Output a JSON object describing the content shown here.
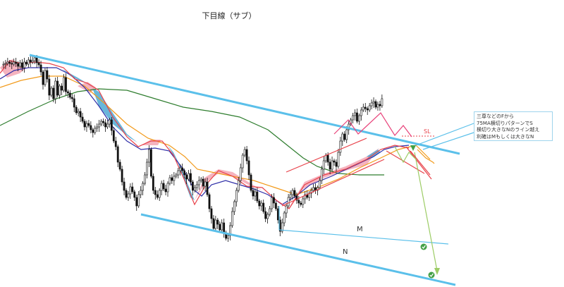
{
  "chart": {
    "title": "下目線（サブ）",
    "annotations": {
      "sl": "SL",
      "m": "M",
      "n": "N",
      "note_lines": [
        "三尊などのFから",
        "75MA横切りパターンでS",
        "横切り大きなNのライン越え",
        "利確はMもしくは大きなN"
      ]
    }
  },
  "colors": {
    "trendline": "#5bc0ea",
    "bull_candle": "#ffffff",
    "bear_candle": "#111111",
    "ma_fast": "#e8424a",
    "ma_mid": "#2f2fa8",
    "ma_75": "#f29a1a",
    "ma_200": "#2e7d2e",
    "cloud_bear": "#4fa9d3",
    "cloud_bull": "#f3a6b4",
    "zigzag": "#e8427a",
    "target_path": "#9ccc65",
    "check": "#43a047"
  },
  "chart_data": {
    "type": "candlestick",
    "title": "下目線（サブ）",
    "axes_labels_shown": false,
    "series": [
      {
        "name": "price",
        "close_path": [
          12,
          11,
          10,
          8,
          10,
          11,
          8,
          10,
          14,
          9,
          16,
          8,
          11,
          5,
          8,
          6,
          2,
          9,
          12,
          22,
          40,
          20,
          32,
          55,
          45,
          60,
          35,
          55,
          42,
          48,
          30,
          50,
          52,
          58,
          60,
          72,
          80,
          78,
          86,
          92,
          100,
          95,
          98,
          104,
          108,
          102,
          100,
          96,
          92,
          94,
          100,
          96,
          90,
          105,
          120,
          128,
          150,
          160,
          178,
          190,
          200,
          195,
          185,
          192,
          200,
          212,
          196,
          190,
          180,
          168,
          150,
          132,
          170,
          190,
          196,
          200,
          190,
          180,
          188,
          192,
          180,
          172,
          176,
          170,
          168,
          162,
          158,
          162,
          168,
          174,
          166,
          178,
          190,
          186,
          182,
          176,
          174,
          184,
          178,
          196,
          216,
          230,
          244,
          232,
          238,
          246,
          236,
          250,
          258,
          254,
          240,
          220,
          206,
          190,
          176,
          158,
          140,
          132,
          148,
          168,
          190,
          198,
          192,
          205,
          212,
          208,
          220,
          230,
          224,
          216,
          200,
          208,
          216,
          232,
          248,
          236,
          222,
          212,
          200,
          196,
          190,
          198,
          204,
          208,
          210,
          202,
          196,
          200,
          194,
          190,
          186,
          190,
          186,
          176,
          160,
          148,
          140,
          150,
          160,
          148,
          150,
          156,
          136,
          120,
          110,
          118,
          104,
          96,
          90,
          84,
          80,
          92,
          84,
          76,
          72,
          74,
          76,
          70,
          66,
          64,
          72,
          68,
          70,
          60
        ]
      }
    ],
    "moving_averages": [
      "fast",
      "mid",
      "75MA",
      "200MA"
    ],
    "levels": [
      "SL",
      "M",
      "N"
    ]
  }
}
